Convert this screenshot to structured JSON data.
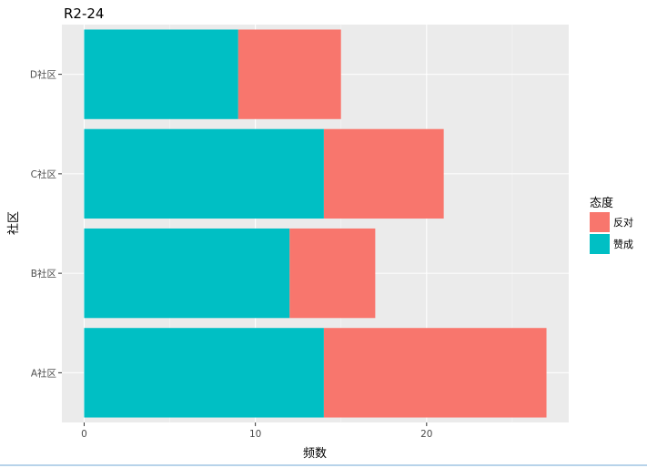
{
  "chart_data": {
    "type": "bar",
    "orientation": "horizontal",
    "stacked": true,
    "title": "R2-24",
    "xlabel": "频数",
    "ylabel": "社区",
    "categories": [
      "A社区",
      "B社区",
      "C社区",
      "D社区"
    ],
    "series": [
      {
        "name": "反对",
        "values": [
          13,
          5,
          7,
          6
        ],
        "color": "#f8766d"
      },
      {
        "name": "赞成",
        "values": [
          14,
          12,
          14,
          9
        ],
        "color": "#00bfc4"
      }
    ],
    "xlim": [
      -1.3,
      28.3
    ],
    "xticks": [
      0,
      10,
      20
    ],
    "grid": true,
    "legend": {
      "title": "态度",
      "position": "right"
    }
  }
}
